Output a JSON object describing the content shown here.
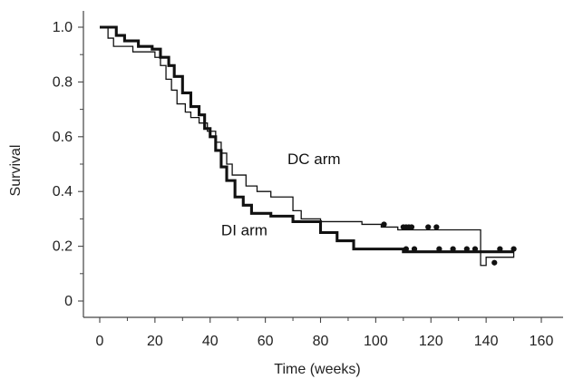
{
  "chart_data": {
    "type": "line",
    "xlabel": "Time (weeks)",
    "ylabel": "Survival",
    "xlim": [
      0,
      160
    ],
    "ylim": [
      0,
      1.0
    ],
    "x_ticks": [
      0,
      20,
      40,
      60,
      80,
      100,
      120,
      140,
      160
    ],
    "y_ticks": [
      0,
      0.2,
      0.4,
      0.6,
      0.8,
      1.0
    ],
    "y_tick_labels": [
      "0",
      "0.2",
      "0.4",
      "0.6",
      "0.8",
      "1.0"
    ],
    "grid": false,
    "series": [
      {
        "name": "DC arm",
        "style": "thin",
        "color": "#111111",
        "steps": [
          [
            0,
            1.0
          ],
          [
            3,
            0.96
          ],
          [
            5,
            0.93
          ],
          [
            12,
            0.91
          ],
          [
            20,
            0.89
          ],
          [
            22,
            0.86
          ],
          [
            24,
            0.81
          ],
          [
            26,
            0.77
          ],
          [
            28,
            0.72
          ],
          [
            31,
            0.69
          ],
          [
            33,
            0.67
          ],
          [
            36,
            0.65
          ],
          [
            39,
            0.62
          ],
          [
            42,
            0.58
          ],
          [
            44,
            0.54
          ],
          [
            46,
            0.5
          ],
          [
            48,
            0.46
          ],
          [
            53,
            0.42
          ],
          [
            57,
            0.4
          ],
          [
            62,
            0.38
          ],
          [
            66,
            0.38
          ],
          [
            70,
            0.33
          ],
          [
            73,
            0.3
          ],
          [
            80,
            0.29
          ],
          [
            85,
            0.29
          ],
          [
            95,
            0.28
          ],
          [
            102,
            0.27
          ],
          [
            108,
            0.26
          ],
          [
            114,
            0.26
          ],
          [
            138,
            0.13
          ],
          [
            140,
            0.16
          ],
          [
            150,
            0.19
          ]
        ],
        "censored": [
          [
            103,
            0.28
          ],
          [
            110,
            0.27
          ],
          [
            111,
            0.27
          ],
          [
            112,
            0.27
          ],
          [
            113,
            0.27
          ],
          [
            119,
            0.27
          ],
          [
            122,
            0.27
          ]
        ]
      },
      {
        "name": "DI arm",
        "style": "thick",
        "color": "#111111",
        "steps": [
          [
            0,
            1.0
          ],
          [
            6,
            0.97
          ],
          [
            9,
            0.95
          ],
          [
            14,
            0.93
          ],
          [
            19,
            0.92
          ],
          [
            22,
            0.89
          ],
          [
            25,
            0.86
          ],
          [
            27,
            0.82
          ],
          [
            30,
            0.76
          ],
          [
            33,
            0.71
          ],
          [
            36,
            0.68
          ],
          [
            38,
            0.63
          ],
          [
            40,
            0.6
          ],
          [
            42,
            0.55
          ],
          [
            44,
            0.49
          ],
          [
            46,
            0.44
          ],
          [
            49,
            0.38
          ],
          [
            52,
            0.35
          ],
          [
            55,
            0.32
          ],
          [
            62,
            0.31
          ],
          [
            70,
            0.29
          ],
          [
            80,
            0.25
          ],
          [
            86,
            0.22
          ],
          [
            92,
            0.19
          ],
          [
            98,
            0.19
          ],
          [
            110,
            0.18
          ],
          [
            150,
            0.18
          ]
        ],
        "censored": [
          [
            111,
            0.19
          ],
          [
            114,
            0.19
          ],
          [
            123,
            0.19
          ],
          [
            128,
            0.19
          ],
          [
            133,
            0.19
          ],
          [
            136,
            0.19
          ],
          [
            143,
            0.14
          ],
          [
            145,
            0.19
          ],
          [
            150,
            0.19
          ]
        ]
      }
    ],
    "annotations": [
      {
        "text": "DC arm",
        "x": 68,
        "y": 0.5
      },
      {
        "text": "DI arm",
        "x": 44,
        "y": 0.24
      }
    ]
  }
}
